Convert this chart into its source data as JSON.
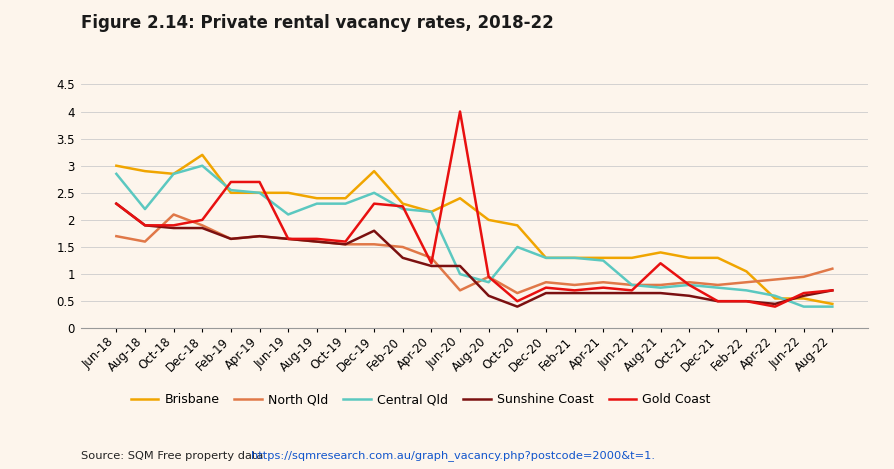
{
  "title": "Figure 2.14: Private rental vacancy rates, 2018-22",
  "source_prefix": "Source: SQM Free property data ",
  "source_url": "https://sqmresearch.com.au/graph_vacancy.php?postcode=2000&t=1",
  "background_color": "#fdf5ec",
  "x_labels": [
    "Jun-18",
    "Aug-18",
    "Oct-18",
    "Dec-18",
    "Feb-19",
    "Apr-19",
    "Jun-19",
    "Aug-19",
    "Oct-19",
    "Dec-19",
    "Feb-20",
    "Apr-20",
    "Jun-20",
    "Aug-20",
    "Oct-20",
    "Dec-20",
    "Feb-21",
    "Apr-21",
    "Jun-21",
    "Aug-21",
    "Oct-21",
    "Dec-21",
    "Feb-22",
    "Apr-22",
    "Jun-22",
    "Aug-22"
  ],
  "series": {
    "Brisbane": {
      "color": "#f0a500",
      "values": [
        3.0,
        2.9,
        2.85,
        3.2,
        2.5,
        2.5,
        2.5,
        2.4,
        2.4,
        2.9,
        2.3,
        2.15,
        2.4,
        2.0,
        1.9,
        1.3,
        1.3,
        1.3,
        1.3,
        1.4,
        1.3,
        1.3,
        1.05,
        0.55,
        0.55,
        0.45
      ]
    },
    "North Qld": {
      "color": "#e07848",
      "values": [
        1.7,
        1.6,
        2.1,
        1.9,
        1.65,
        1.7,
        1.65,
        1.6,
        1.55,
        1.55,
        1.5,
        1.3,
        0.7,
        0.95,
        0.65,
        0.85,
        0.8,
        0.85,
        0.8,
        0.8,
        0.85,
        0.8,
        0.85,
        0.9,
        0.95,
        1.1
      ]
    },
    "Central Qld": {
      "color": "#5bc8c0",
      "values": [
        2.85,
        2.2,
        2.85,
        3.0,
        2.55,
        2.5,
        2.1,
        2.3,
        2.3,
        2.5,
        2.2,
        2.15,
        1.0,
        0.85,
        1.5,
        1.3,
        1.3,
        1.25,
        0.8,
        0.75,
        0.8,
        0.75,
        0.7,
        0.6,
        0.4,
        0.4
      ]
    },
    "Sunshine Coast": {
      "color": "#7b1010",
      "values": [
        2.3,
        1.9,
        1.85,
        1.85,
        1.65,
        1.7,
        1.65,
        1.6,
        1.55,
        1.8,
        1.3,
        1.15,
        1.15,
        0.6,
        0.4,
        0.65,
        0.65,
        0.65,
        0.65,
        0.65,
        0.6,
        0.5,
        0.5,
        0.45,
        0.6,
        0.7
      ]
    },
    "Gold Coast": {
      "color": "#e81010",
      "values": [
        2.3,
        1.9,
        1.9,
        2.0,
        2.7,
        2.7,
        1.65,
        1.65,
        1.6,
        2.3,
        2.25,
        1.2,
        4.0,
        0.95,
        0.5,
        0.75,
        0.7,
        0.75,
        0.7,
        1.2,
        0.8,
        0.5,
        0.5,
        0.4,
        0.65,
        0.7
      ]
    }
  },
  "ylim": [
    0,
    4.5
  ],
  "yticks": [
    0,
    0.5,
    1,
    1.5,
    2,
    2.5,
    3,
    3.5,
    4,
    4.5
  ],
  "legend_order": [
    "Brisbane",
    "North Qld",
    "Central Qld",
    "Sunshine Coast",
    "Gold Coast"
  ],
  "title_fontsize": 12,
  "axis_fontsize": 8.5,
  "legend_fontsize": 9,
  "line_width": 1.8
}
